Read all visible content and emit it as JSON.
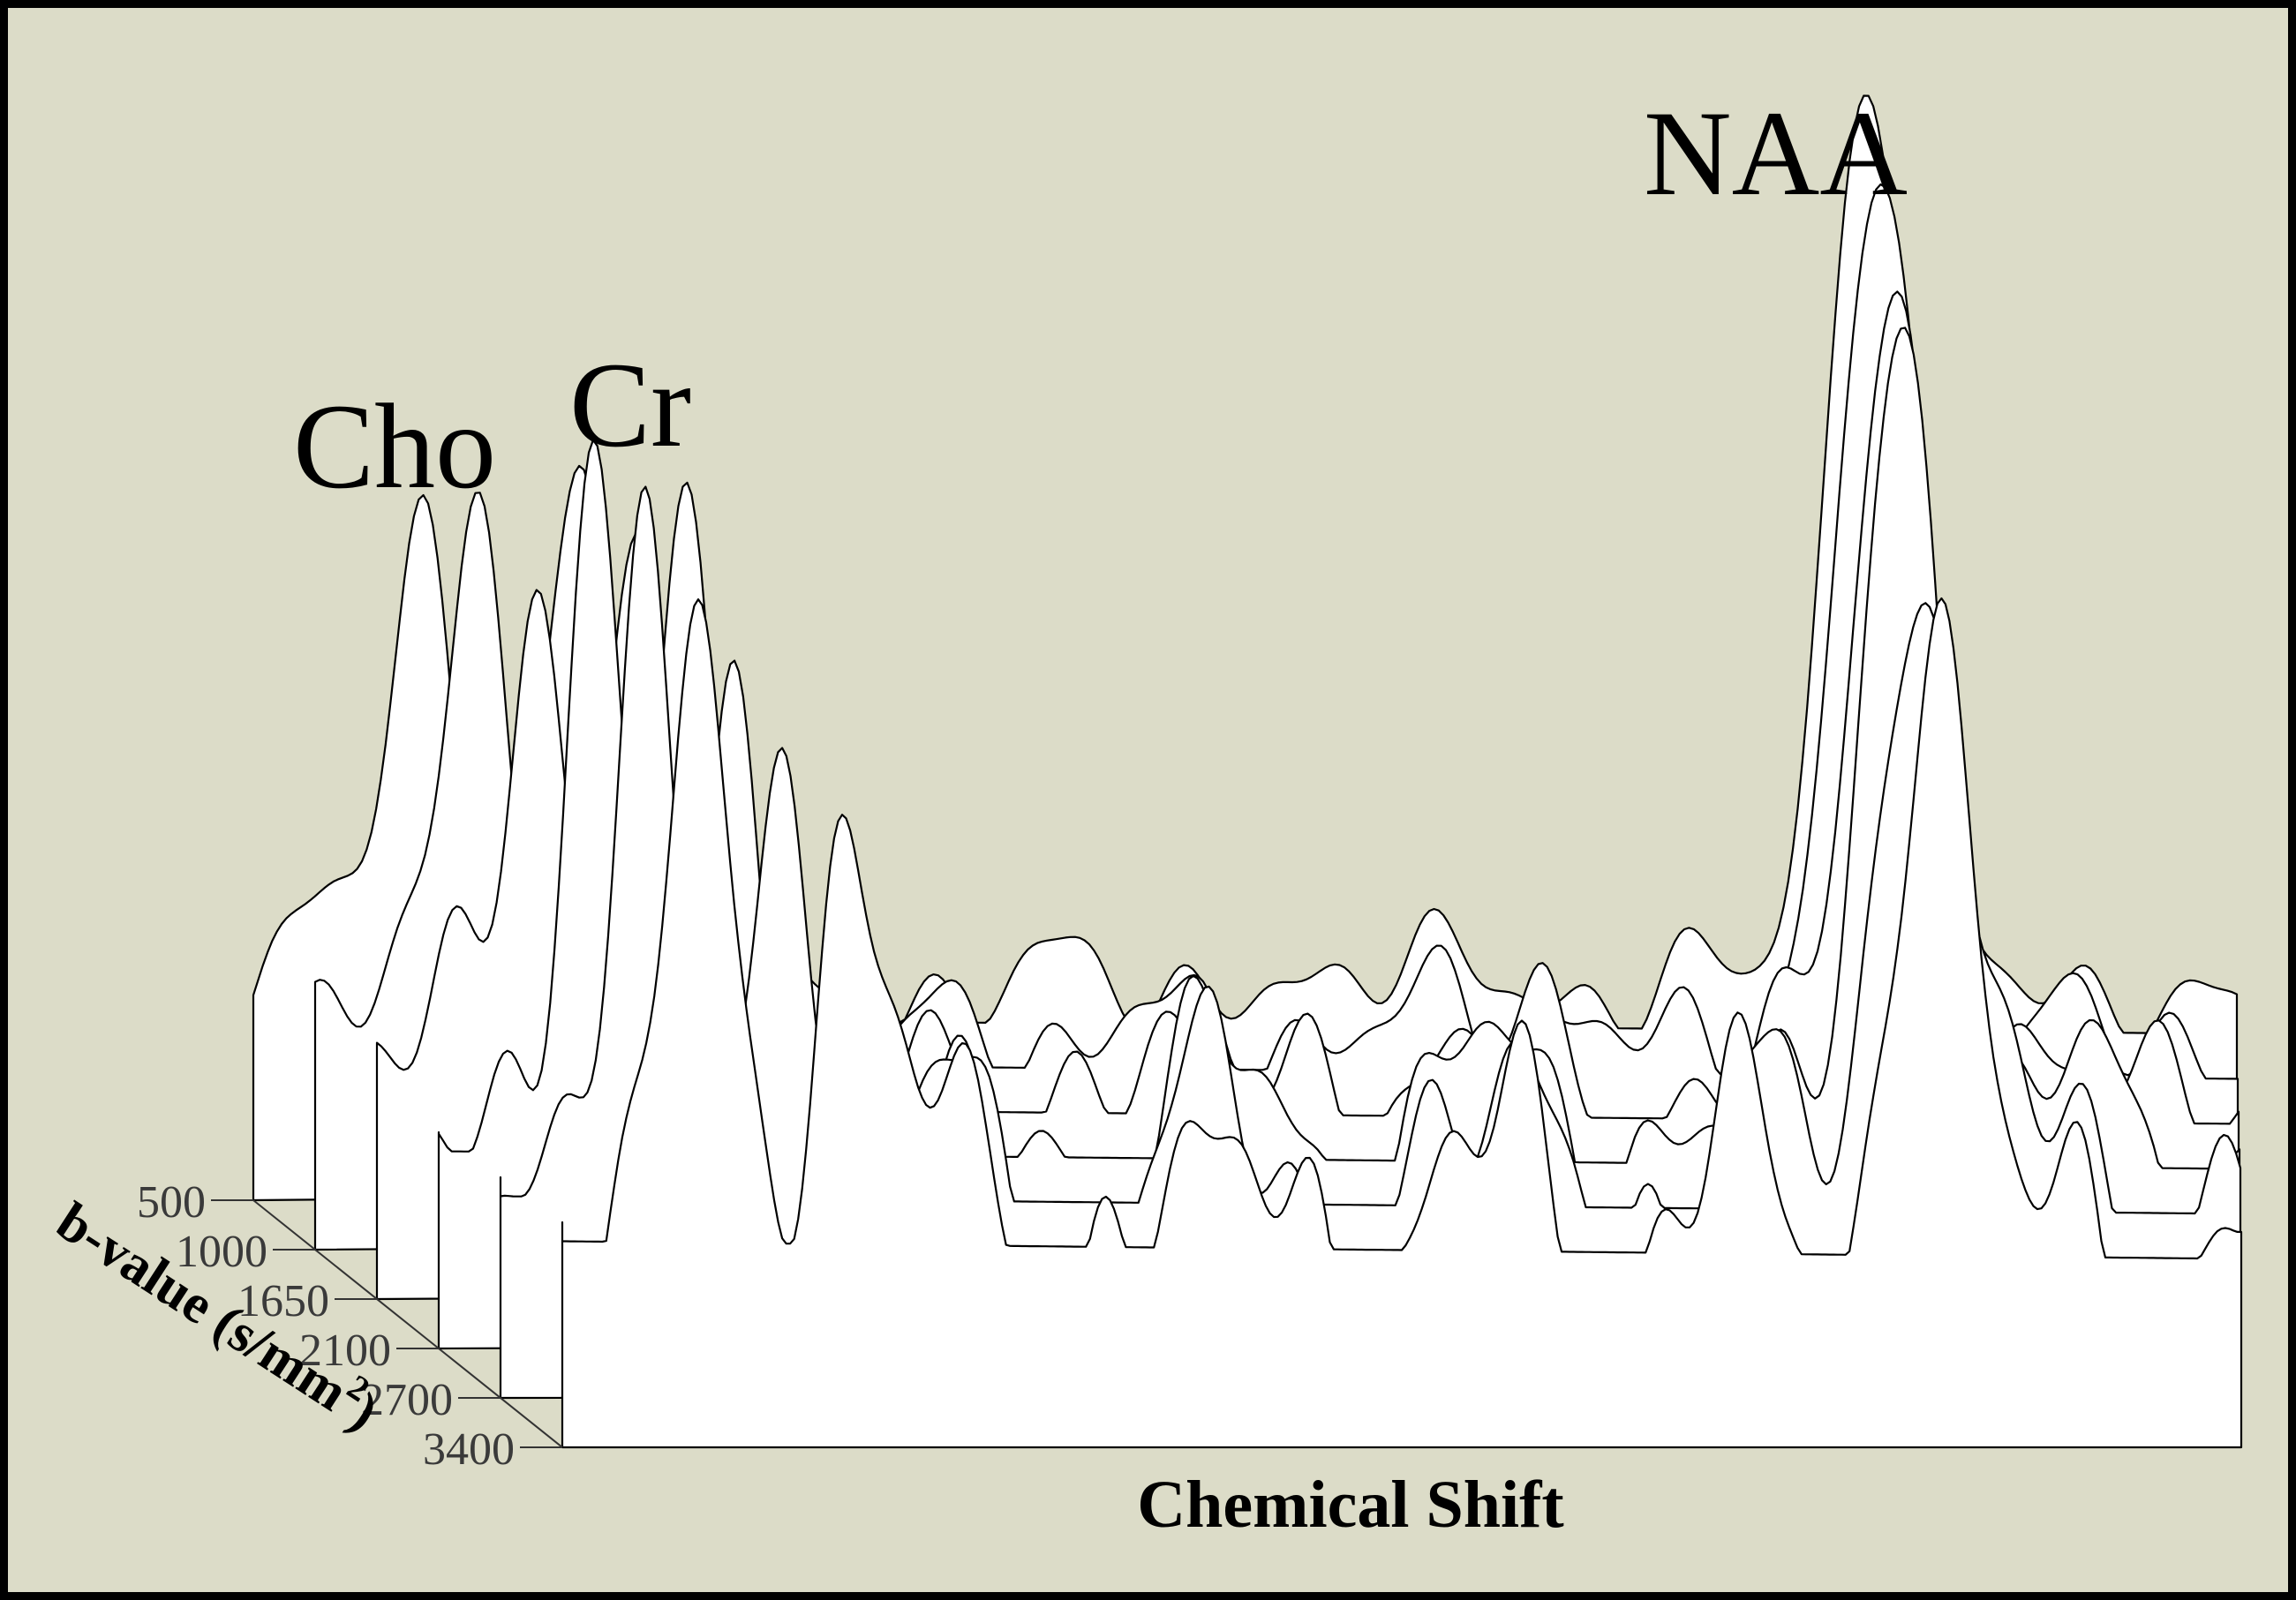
{
  "background_color": "#dcdcc8",
  "frame_color": "#000000",
  "chart_data": {
    "type": "area",
    "title": "",
    "xlabel": "Chemical Shift",
    "ylabel": "b-value (s/mm",
    "ylabel_superscript": "2",
    "ylabel_close": ")",
    "series": [
      {
        "b_value": "500"
      },
      {
        "b_value": "1000"
      },
      {
        "b_value": "1650"
      },
      {
        "b_value": "2100"
      },
      {
        "b_value": "2700"
      },
      {
        "b_value": "3400"
      }
    ],
    "peak_labels": [
      "Cho",
      "Cr",
      "NAA"
    ],
    "peak_heights": {
      "Cho": [
        0.52,
        0.58,
        0.59,
        0.64,
        0.64,
        0.57
      ],
      "Cr": [
        0.56,
        0.55,
        0.55,
        0.47,
        0.5,
        0.56
      ],
      "NAA": [
        1.0,
        0.93,
        0.87,
        0.88,
        0.76,
        0.62
      ]
    },
    "legend": "none",
    "grid": false
  }
}
